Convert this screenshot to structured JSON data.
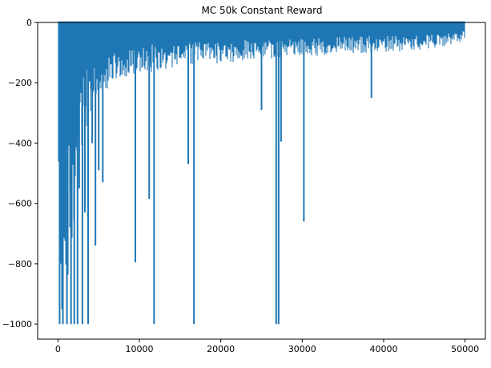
{
  "colors": {
    "background": "#ffffff",
    "series_line": "#1f77b4",
    "axis": "#000000"
  },
  "chart_data": {
    "type": "line",
    "title": "MC 50k Constant Reward",
    "xlabel": "",
    "ylabel": "",
    "xlim": [
      -2500,
      52500
    ],
    "ylim": [
      -1050,
      0
    ],
    "grid": false,
    "legend": "none",
    "x_ticks": [
      0,
      10000,
      20000,
      30000,
      40000,
      50000
    ],
    "x_tick_labels": [
      "0",
      "10000",
      "20000",
      "30000",
      "40000",
      "50000"
    ],
    "y_ticks": [
      0,
      -200,
      -400,
      -600,
      -800,
      -1000
    ],
    "y_tick_labels": [
      "0",
      "−200",
      "−400",
      "−600",
      "−800",
      "−1000"
    ],
    "series": [
      {
        "x_start": 0,
        "x_end": 50000,
        "points": 50000,
        "upper_bound": 0,
        "baseline_low_envelope": [
          [
            0,
            -1000
          ],
          [
            500,
            -1000
          ],
          [
            1000,
            -900
          ],
          [
            1500,
            -800
          ],
          [
            2000,
            -650
          ],
          [
            2500,
            -550
          ],
          [
            3000,
            -420
          ],
          [
            3500,
            -350
          ],
          [
            4000,
            -300
          ],
          [
            5000,
            -260
          ],
          [
            6000,
            -230
          ],
          [
            7000,
            -200
          ],
          [
            8000,
            -190
          ],
          [
            10000,
            -175
          ],
          [
            12000,
            -160
          ],
          [
            15000,
            -150
          ],
          [
            20000,
            -135
          ],
          [
            25000,
            -125
          ],
          [
            30000,
            -115
          ],
          [
            35000,
            -105
          ],
          [
            40000,
            -100
          ],
          [
            45000,
            -90
          ],
          [
            48000,
            -75
          ],
          [
            50000,
            -60
          ]
        ],
        "spikes": [
          {
            "x": 200,
            "y": -1000
          },
          {
            "x": 600,
            "y": -1000
          },
          {
            "x": 1100,
            "y": -1000
          },
          {
            "x": 1600,
            "y": -1000
          },
          {
            "x": 2000,
            "y": -1000
          },
          {
            "x": 2400,
            "y": -1000
          },
          {
            "x": 2600,
            "y": -550
          },
          {
            "x": 3000,
            "y": -1000
          },
          {
            "x": 3300,
            "y": -630
          },
          {
            "x": 3700,
            "y": -1000
          },
          {
            "x": 4200,
            "y": -400
          },
          {
            "x": 4600,
            "y": -740
          },
          {
            "x": 5000,
            "y": -490
          },
          {
            "x": 5500,
            "y": -530
          },
          {
            "x": 9500,
            "y": -795
          },
          {
            "x": 11200,
            "y": -585
          },
          {
            "x": 11800,
            "y": -1000
          },
          {
            "x": 16000,
            "y": -470
          },
          {
            "x": 16700,
            "y": -1000
          },
          {
            "x": 25000,
            "y": -290
          },
          {
            "x": 26800,
            "y": -1000
          },
          {
            "x": 27100,
            "y": -1000
          },
          {
            "x": 27400,
            "y": -395
          },
          {
            "x": 30200,
            "y": -660
          },
          {
            "x": 38500,
            "y": -250
          }
        ]
      }
    ]
  }
}
